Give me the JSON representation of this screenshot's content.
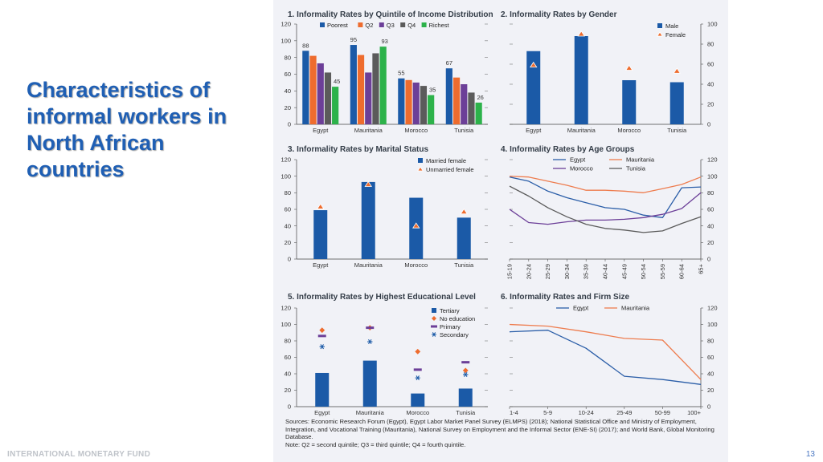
{
  "slide": {
    "title": "Characteristics of informal workers in North African countries",
    "footer": "INTERNATIONAL MONETARY FUND",
    "page_number": "13"
  },
  "sources": "Sources: Economic Research Forum (Egypt), Egypt Labor Market Panel Survey (ELMPS) (2018); National Statistical Office and Ministry of Employment, Integration, and Vocational Training (Mauritania), National Survey on Employment and the Informal Sector (ENE-SI) (2017); and World Bank, Global Monitoring Database.",
  "note": "Note: Q2 = second quintile; Q3 = third quintile; Q4 = fourth quintile.",
  "colors": {
    "navy": "#1b5aa7",
    "orange": "#ee6c2e",
    "purple": "#6c3f98",
    "gray": "#5b5b5b",
    "green": "#2cb24a",
    "triangle": "#ee6c2e",
    "egypt_line": "#2b5ea8",
    "mauritania_line": "#ee7c4e",
    "morocco_line": "#6c3f98",
    "tunisia_line": "#5b5b5b"
  },
  "chart_data": [
    {
      "id": "c1",
      "type": "bar",
      "title": "1. Informality Rates by Quintile of Income Distribution",
      "categories": [
        "Egypt",
        "Mauritania",
        "Morocco",
        "Tunisia"
      ],
      "ylim": [
        0,
        120
      ],
      "yticks": [
        0,
        20,
        40,
        60,
        80,
        100,
        120
      ],
      "series": [
        {
          "name": "Poorest",
          "color": "#1b5aa7",
          "values": [
            88,
            95,
            55,
            67
          ]
        },
        {
          "name": "Q2",
          "color": "#ee6c2e",
          "values": [
            82,
            83,
            53,
            56
          ]
        },
        {
          "name": "Q3",
          "color": "#6c3f98",
          "values": [
            73,
            62,
            50,
            48
          ]
        },
        {
          "name": "Q4",
          "color": "#5b5b5b",
          "values": [
            62,
            85,
            46,
            38
          ]
        },
        {
          "name": "Richest",
          "color": "#2cb24a",
          "values": [
            45,
            93,
            35,
            26
          ]
        }
      ],
      "data_labels": [
        {
          "category": "Egypt",
          "series": "Poorest",
          "text": "88"
        },
        {
          "category": "Egypt",
          "series": "Richest",
          "text": "45"
        },
        {
          "category": "Mauritania",
          "series": "Poorest",
          "text": "95"
        },
        {
          "category": "Mauritania",
          "series": "Richest",
          "text": "93"
        },
        {
          "category": "Morocco",
          "series": "Poorest",
          "text": "55"
        },
        {
          "category": "Morocco",
          "series": "Richest",
          "text": "35"
        },
        {
          "category": "Tunisia",
          "series": "Poorest",
          "text": "67"
        },
        {
          "category": "Tunisia",
          "series": "Richest",
          "text": "26"
        }
      ]
    },
    {
      "id": "c2",
      "type": "bar",
      "title": "2. Informality Rates by Gender",
      "categories": [
        "Egypt",
        "Mauritania",
        "Morocco",
        "Tunisia"
      ],
      "ylim": [
        0,
        100
      ],
      "yticks": [
        0,
        20,
        40,
        60,
        80,
        100
      ],
      "series": [
        {
          "name": "Male",
          "type": "bar",
          "color": "#1b5aa7",
          "values": [
            73,
            88,
            44,
            42
          ]
        },
        {
          "name": "Female",
          "type": "triangle",
          "color": "#ee6c2e",
          "values": [
            59,
            90,
            56,
            53
          ]
        }
      ]
    },
    {
      "id": "c3",
      "type": "bar",
      "title": "3. Informality Rates by Marital Status",
      "categories": [
        "Egypt",
        "Mauritania",
        "Morocco",
        "Tunisia"
      ],
      "ylim": [
        0,
        120
      ],
      "yticks": [
        0,
        20,
        40,
        60,
        80,
        100,
        120
      ],
      "series": [
        {
          "name": "Married female",
          "type": "bar",
          "color": "#1b5aa7",
          "values": [
            59,
            93,
            74,
            50
          ]
        },
        {
          "name": "Unmarried female",
          "type": "triangle",
          "color": "#ee6c2e",
          "values": [
            63,
            90,
            40,
            57
          ]
        }
      ]
    },
    {
      "id": "c4",
      "type": "line",
      "title": "4. Informality Rates by Age Groups",
      "x": [
        "15-19",
        "20-24",
        "25-29",
        "30-34",
        "35-39",
        "40-44",
        "45-49",
        "50-54",
        "55-59",
        "60-64",
        "65+"
      ],
      "ylim": [
        0,
        120
      ],
      "yticks": [
        0,
        20,
        40,
        60,
        80,
        100,
        120
      ],
      "series": [
        {
          "name": "Egypt",
          "color": "#2b5ea8",
          "values": [
            99,
            94,
            82,
            74,
            68,
            62,
            60,
            53,
            50,
            86,
            87
          ]
        },
        {
          "name": "Mauritania",
          "color": "#ee7c4e",
          "values": [
            100,
            99,
            94,
            89,
            83,
            83,
            82,
            80,
            85,
            90,
            99
          ]
        },
        {
          "name": "Morocco",
          "color": "#6c3f98",
          "values": [
            60,
            44,
            42,
            45,
            47,
            47,
            48,
            50,
            54,
            61,
            80
          ]
        },
        {
          "name": "Tunisia",
          "color": "#5b5b5b",
          "values": [
            88,
            76,
            62,
            51,
            42,
            37,
            35,
            32,
            34,
            43,
            51
          ]
        }
      ]
    },
    {
      "id": "c5",
      "type": "bar",
      "title": "5. Informality Rates by Highest Educational Level",
      "categories": [
        "Egypt",
        "Mauritania",
        "Morocco",
        "Tunisia"
      ],
      "ylim": [
        0,
        120
      ],
      "yticks": [
        0,
        20,
        40,
        60,
        80,
        100,
        120
      ],
      "series": [
        {
          "name": "Tertiary",
          "type": "bar",
          "color": "#1b5aa7",
          "values": [
            41,
            56,
            16,
            22
          ]
        },
        {
          "name": "No education",
          "type": "diamond",
          "color": "#ee6c2e",
          "values": [
            93,
            96,
            67,
            44
          ]
        },
        {
          "name": "Primary",
          "type": "dash",
          "color": "#6c3f98",
          "values": [
            86,
            96,
            45,
            54
          ]
        },
        {
          "name": "Secondary",
          "type": "star",
          "color": "#1b5aa7",
          "values": [
            73,
            79,
            35,
            39
          ]
        }
      ]
    },
    {
      "id": "c6",
      "type": "line",
      "title": "6. Informality Rates and Firm Size",
      "x": [
        "1-4",
        "5-9",
        "10-24",
        "25-49",
        "50-99",
        "100+"
      ],
      "ylim": [
        0,
        120
      ],
      "yticks": [
        0,
        20,
        40,
        60,
        80,
        100,
        120
      ],
      "series": [
        {
          "name": "Egypt",
          "color": "#2b5ea8",
          "values": [
            91,
            93,
            71,
            37,
            33,
            27
          ]
        },
        {
          "name": "Mauritania",
          "color": "#ee7c4e",
          "values": [
            100,
            98,
            91,
            83,
            81,
            33
          ]
        }
      ]
    }
  ]
}
